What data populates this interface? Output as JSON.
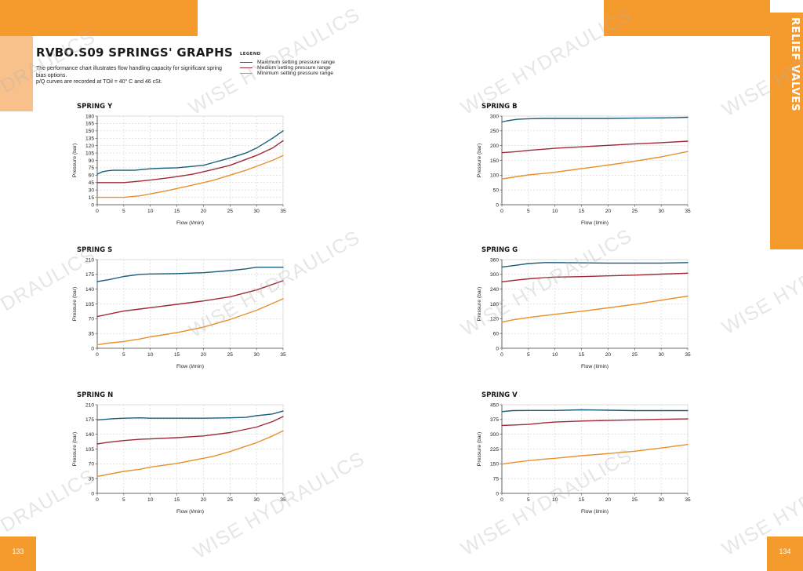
{
  "header": {
    "title": "RVBO.S09 SPRINGS' GRAPHS",
    "description": [
      "The performance chart illustrates flow handling capacity for significant spring",
      "bias options.",
      "p/Q curves are recorded at TOil = 40° C and 46 cSt."
    ]
  },
  "legend": {
    "title": "LEGEND",
    "items": [
      {
        "label": "Maximum setting pressure range",
        "color": "#1b5e7b"
      },
      {
        "label": "Medium setting pressure range",
        "color": "#9e2a37"
      },
      {
        "label": "Minimum setting pressure range",
        "color": "#e8902a"
      }
    ]
  },
  "side_tab": {
    "label": "RELIEF VALVES"
  },
  "pages": {
    "left": "133",
    "right": "134"
  },
  "watermark": {
    "text": "WISE HYDRAULICS",
    "partial_text": "DRAULICS",
    "partial_text_right": "WISE HYD"
  },
  "chart_data": [
    {
      "type": "line",
      "title": "SPRING Y",
      "xlabel": "Flow (l/min)",
      "ylabel": "Pressure (bar)",
      "xlim": [
        0,
        35
      ],
      "ylim": [
        0,
        180
      ],
      "xticks": [
        0,
        5,
        10,
        15,
        20,
        25,
        30,
        35
      ],
      "yticks": [
        0,
        15,
        30,
        45,
        60,
        75,
        90,
        105,
        120,
        135,
        150,
        165,
        180
      ],
      "grid": true,
      "series": [
        {
          "color": "#1b5e7b",
          "x": [
            0,
            1,
            2,
            3,
            5,
            7,
            8,
            10,
            12,
            15,
            17,
            20,
            22,
            25,
            28,
            30,
            33,
            35
          ],
          "y": [
            62,
            67,
            69,
            70,
            70,
            70,
            71,
            73,
            74,
            75,
            77,
            80,
            86,
            95,
            105,
            115,
            135,
            150
          ]
        },
        {
          "color": "#9e2a37",
          "x": [
            0,
            3,
            5,
            8,
            10,
            13,
            15,
            18,
            20,
            22,
            25,
            28,
            30,
            33,
            35
          ],
          "y": [
            45,
            45,
            45,
            48,
            50,
            54,
            57,
            62,
            67,
            72,
            80,
            92,
            100,
            115,
            130
          ]
        },
        {
          "color": "#e8902a",
          "x": [
            0,
            3,
            5,
            8,
            10,
            13,
            15,
            18,
            20,
            22,
            25,
            28,
            30,
            33,
            35
          ],
          "y": [
            15,
            15,
            15,
            18,
            22,
            28,
            33,
            40,
            45,
            50,
            60,
            70,
            78,
            90,
            100
          ]
        }
      ]
    },
    {
      "type": "line",
      "title": "SPRING B",
      "xlabel": "Flow (l/min)",
      "ylabel": "Pressure (bar)",
      "xlim": [
        0,
        35
      ],
      "ylim": [
        0,
        300
      ],
      "xticks": [
        0,
        5,
        10,
        15,
        20,
        25,
        30,
        35
      ],
      "yticks": [
        0,
        50,
        100,
        150,
        200,
        250,
        300
      ],
      "grid": true,
      "series": [
        {
          "color": "#1b5e7b",
          "x": [
            0,
            1,
            2,
            3,
            5,
            8,
            10,
            15,
            20,
            25,
            30,
            33,
            35
          ],
          "y": [
            280,
            284,
            287,
            289,
            291,
            292,
            292,
            292,
            292,
            293,
            294,
            295,
            296
          ]
        },
        {
          "color": "#9e2a37",
          "x": [
            0,
            3,
            5,
            8,
            10,
            15,
            20,
            25,
            30,
            35
          ],
          "y": [
            176,
            180,
            184,
            188,
            191,
            196,
            201,
            206,
            210,
            215
          ]
        },
        {
          "color": "#e8902a",
          "x": [
            0,
            2,
            5,
            8,
            10,
            15,
            20,
            25,
            30,
            35
          ],
          "y": [
            87,
            93,
            101,
            106,
            110,
            122,
            134,
            147,
            162,
            180
          ]
        }
      ]
    },
    {
      "type": "line",
      "title": "SPRING S",
      "xlabel": "Flow (l/min)",
      "ylabel": "Pressure (bar)",
      "xlim": [
        0,
        35
      ],
      "ylim": [
        0,
        210
      ],
      "xticks": [
        0,
        5,
        10,
        15,
        20,
        25,
        30,
        35
      ],
      "yticks": [
        0,
        35,
        70,
        105,
        140,
        175,
        210
      ],
      "grid": true,
      "series": [
        {
          "color": "#1b5e7b",
          "x": [
            0,
            2,
            5,
            8,
            10,
            15,
            20,
            25,
            28,
            30,
            33,
            35
          ],
          "y": [
            158,
            162,
            170,
            175,
            176,
            177,
            179,
            184,
            188,
            192,
            192,
            192
          ]
        },
        {
          "color": "#9e2a37",
          "x": [
            0,
            3,
            5,
            8,
            10,
            15,
            20,
            25,
            30,
            35
          ],
          "y": [
            75,
            83,
            88,
            93,
            96,
            104,
            112,
            122,
            138,
            160
          ]
        },
        {
          "color": "#e8902a",
          "x": [
            0,
            2,
            5,
            8,
            10,
            15,
            20,
            25,
            30,
            35
          ],
          "y": [
            8,
            12,
            16,
            22,
            27,
            37,
            50,
            68,
            90,
            117
          ]
        }
      ]
    },
    {
      "type": "line",
      "title": "SPRING G",
      "xlabel": "Flow (l/min)",
      "ylabel": "Pressure (bar)",
      "xlim": [
        0,
        35
      ],
      "ylim": [
        0,
        360
      ],
      "xticks": [
        0,
        5,
        10,
        15,
        20,
        25,
        30,
        35
      ],
      "yticks": [
        0,
        60,
        120,
        180,
        240,
        300,
        360
      ],
      "grid": true,
      "series": [
        {
          "color": "#1b5e7b",
          "x": [
            0,
            2,
            5,
            8,
            10,
            15,
            20,
            25,
            30,
            35
          ],
          "y": [
            330,
            335,
            344,
            348,
            348,
            347,
            346,
            346,
            346,
            348
          ]
        },
        {
          "color": "#9e2a37",
          "x": [
            0,
            2,
            5,
            8,
            10,
            15,
            20,
            25,
            30,
            35
          ],
          "y": [
            270,
            275,
            282,
            287,
            289,
            291,
            294,
            297,
            301,
            305
          ]
        },
        {
          "color": "#e8902a",
          "x": [
            0,
            2,
            5,
            8,
            10,
            15,
            20,
            25,
            30,
            35
          ],
          "y": [
            106,
            115,
            125,
            133,
            138,
            150,
            164,
            178,
            195,
            212
          ]
        }
      ]
    },
    {
      "type": "line",
      "title": "SPRING N",
      "xlabel": "Flow (l/min)",
      "ylabel": "Pressure (bar)",
      "xlim": [
        0,
        35
      ],
      "ylim": [
        0,
        210
      ],
      "xticks": [
        0,
        5,
        10,
        15,
        20,
        25,
        30,
        35
      ],
      "yticks": [
        0,
        35,
        70,
        105,
        140,
        175,
        210
      ],
      "grid": true,
      "series": [
        {
          "color": "#1b5e7b",
          "x": [
            0,
            3,
            5,
            8,
            10,
            15,
            20,
            25,
            28,
            30,
            33,
            35
          ],
          "y": [
            174,
            177,
            178,
            179,
            178,
            178,
            178,
            179,
            180,
            184,
            188,
            195
          ]
        },
        {
          "color": "#9e2a37",
          "x": [
            0,
            2,
            5,
            8,
            10,
            15,
            20,
            25,
            30,
            33,
            35
          ],
          "y": [
            117,
            121,
            125,
            128,
            129,
            132,
            136,
            144,
            157,
            170,
            182
          ]
        },
        {
          "color": "#e8902a",
          "x": [
            0,
            2,
            5,
            8,
            10,
            15,
            20,
            22,
            25,
            30,
            33,
            35
          ],
          "y": [
            40,
            45,
            52,
            57,
            62,
            71,
            83,
            88,
            99,
            120,
            136,
            148
          ]
        }
      ]
    },
    {
      "type": "line",
      "title": "SPRING V",
      "xlabel": "Flow (l/min)",
      "ylabel": "Pressure (bar)",
      "xlim": [
        0,
        35
      ],
      "ylim": [
        0,
        450
      ],
      "xticks": [
        0,
        5,
        10,
        15,
        20,
        25,
        30,
        35
      ],
      "yticks": [
        0,
        75,
        150,
        225,
        300,
        375,
        450
      ],
      "grid": true,
      "series": [
        {
          "color": "#1b5e7b",
          "x": [
            0,
            2,
            5,
            10,
            15,
            20,
            25,
            30,
            35
          ],
          "y": [
            415,
            420,
            421,
            421,
            424,
            422,
            420,
            420,
            420
          ]
        },
        {
          "color": "#9e2a37",
          "x": [
            0,
            2,
            5,
            8,
            10,
            15,
            20,
            25,
            30,
            35
          ],
          "y": [
            345,
            347,
            350,
            358,
            362,
            367,
            370,
            373,
            376,
            378
          ]
        },
        {
          "color": "#e8902a",
          "x": [
            0,
            2,
            5,
            8,
            10,
            15,
            20,
            25,
            30,
            35
          ],
          "y": [
            148,
            156,
            166,
            174,
            178,
            191,
            202,
            214,
            230,
            248
          ]
        }
      ]
    }
  ]
}
